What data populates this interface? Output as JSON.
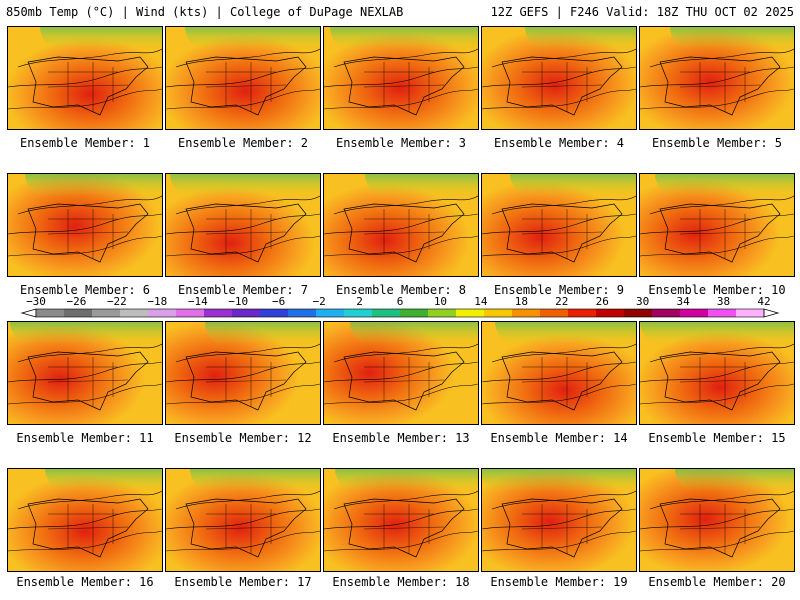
{
  "header": {
    "left": "850mb Temp (°C) | Wind (kts) | College of DuPage NEXLAB",
    "right": "12Z GEFS | F246 Valid: 18Z THU OCT 02 2025"
  },
  "members": [
    {
      "label": "Ensemble Member: 1"
    },
    {
      "label": "Ensemble Member: 2"
    },
    {
      "label": "Ensemble Member: 3"
    },
    {
      "label": "Ensemble Member: 4"
    },
    {
      "label": "Ensemble Member: 5"
    },
    {
      "label": "Ensemble Member: 6"
    },
    {
      "label": "Ensemble Member: 7"
    },
    {
      "label": "Ensemble Member: 8"
    },
    {
      "label": "Ensemble Member: 9"
    },
    {
      "label": "Ensemble Member: 10"
    },
    {
      "label": "Ensemble Member: 11"
    },
    {
      "label": "Ensemble Member: 12"
    },
    {
      "label": "Ensemble Member: 13"
    },
    {
      "label": "Ensemble Member: 14"
    },
    {
      "label": "Ensemble Member: 15"
    },
    {
      "label": "Ensemble Member: 16"
    },
    {
      "label": "Ensemble Member: 17"
    },
    {
      "label": "Ensemble Member: 18"
    },
    {
      "label": "Ensemble Member: 19"
    },
    {
      "label": "Ensemble Member: 20"
    }
  ],
  "colorbar": {
    "ticks": [
      "−30",
      "−26",
      "−22",
      "−18",
      "−14",
      "−10",
      "−6",
      "−2",
      "2",
      "6",
      "10",
      "14",
      "18",
      "22",
      "26",
      "30",
      "34",
      "38",
      "42"
    ],
    "colors": [
      "#8a8a8a",
      "#6e6e6e",
      "#9a9a9a",
      "#bdbdbd",
      "#d9a0e8",
      "#e070e8",
      "#9b30d0",
      "#6a28c8",
      "#3040d8",
      "#2070e8",
      "#20b0f0",
      "#20d0d0",
      "#20c080",
      "#40b030",
      "#90d020",
      "#f0f000",
      "#f8c800",
      "#f89000",
      "#f06000",
      "#e82000",
      "#c00000",
      "#900000",
      "#a00060",
      "#d000a0",
      "#f050f0",
      "#ffb0ff"
    ]
  }
}
